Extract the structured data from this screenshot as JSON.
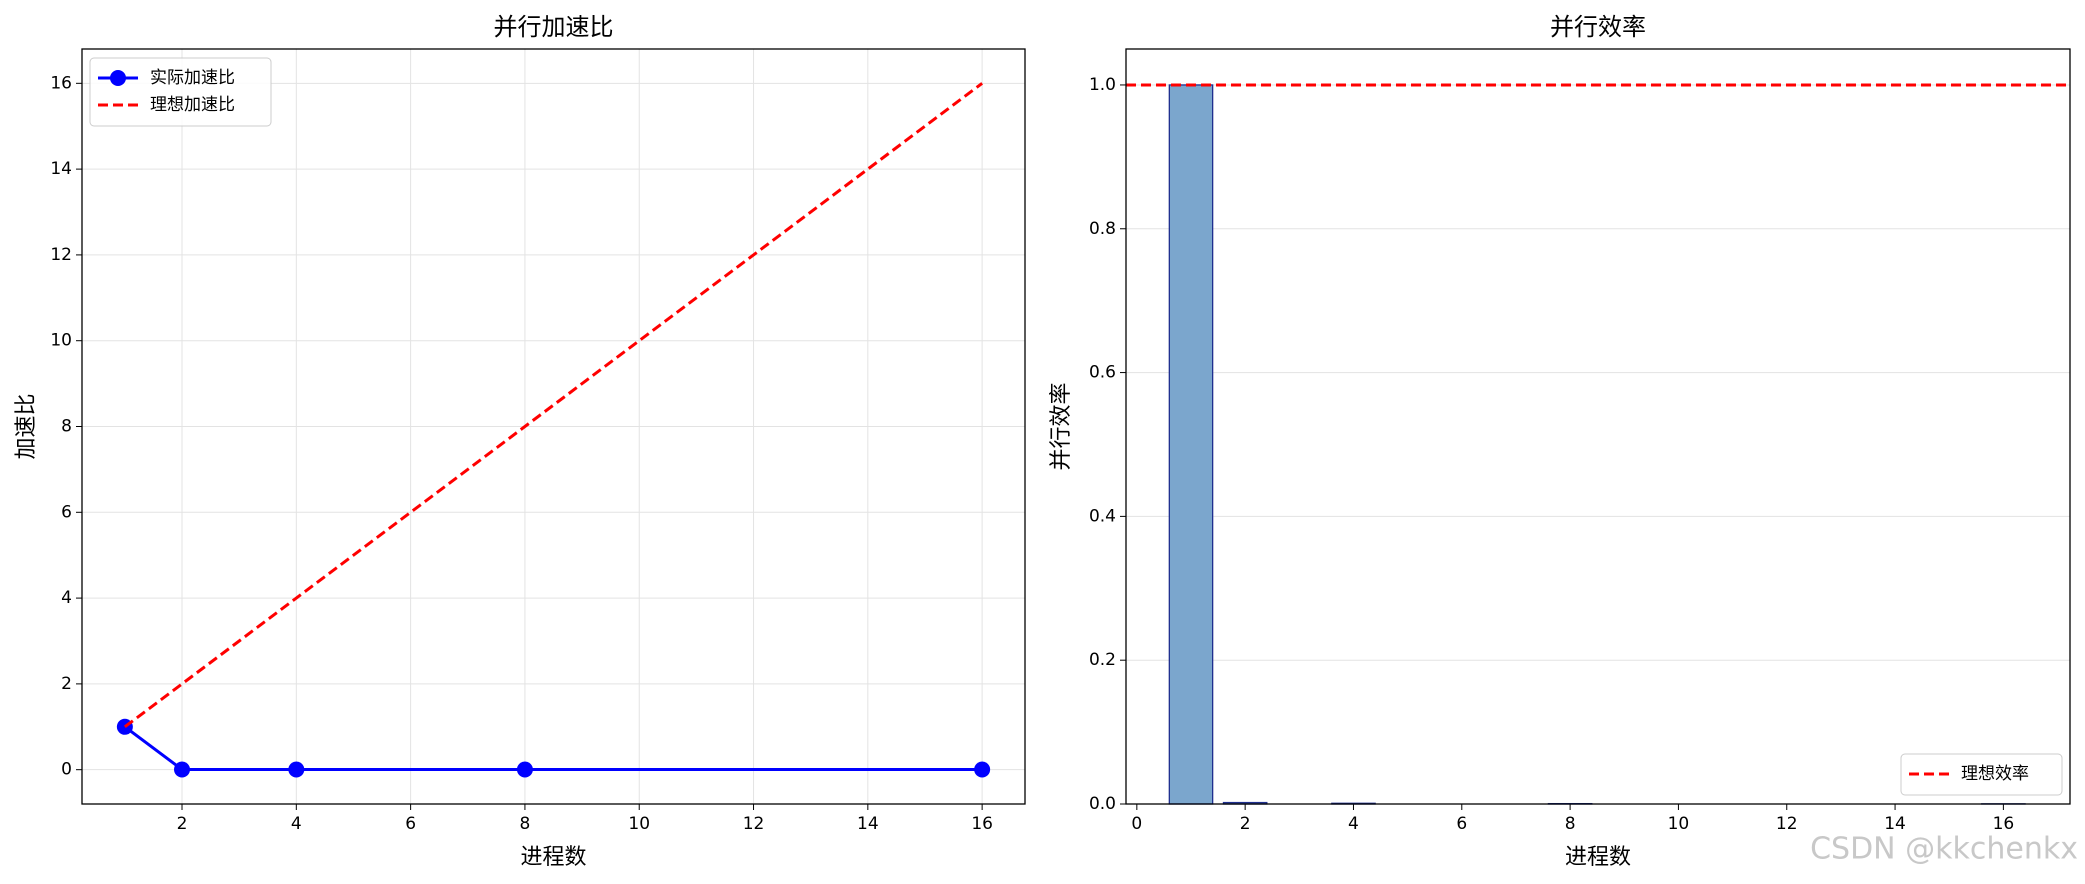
{
  "chart_data": [
    {
      "type": "line",
      "title": "并行加速比",
      "xlabel": "进程数",
      "ylabel": "加速比",
      "x": [
        1,
        2,
        4,
        8,
        16
      ],
      "series": [
        {
          "name": "实际加速比",
          "color": "#0000ff",
          "linestyle": "solid",
          "marker": "circle",
          "values": [
            1,
            0.004,
            0.004,
            0.004,
            0.004
          ]
        },
        {
          "name": "理想加速比",
          "color": "#ff0000",
          "linestyle": "dashed",
          "values": [
            1,
            2,
            4,
            8,
            16
          ]
        }
      ],
      "xlim": [
        0.25,
        16.75
      ],
      "ylim": [
        -0.8,
        16.8
      ],
      "xticks": [
        2,
        4,
        6,
        8,
        10,
        12,
        14,
        16
      ],
      "yticks": [
        0,
        2,
        4,
        6,
        8,
        10,
        12,
        14,
        16
      ],
      "grid": "both",
      "legend": "upper left"
    },
    {
      "type": "bar",
      "title": "并行效率",
      "xlabel": "进程数",
      "ylabel": "并行效率",
      "x": [
        1,
        2,
        4,
        8,
        16
      ],
      "values": [
        1,
        0.002,
        0.001,
        0.0005,
        0.00025
      ],
      "color": "#7ba6cd",
      "edgecolor": "#1f2f8f",
      "reference_line": {
        "name": "理想效率",
        "y": 1.0,
        "color": "#ff0000",
        "linestyle": "dashed"
      },
      "xlim": [
        -0.2,
        17.23
      ],
      "ylim": [
        0,
        1.05
      ],
      "xticks": [
        0,
        2,
        4,
        6,
        8,
        10,
        12,
        14,
        16
      ],
      "yticks": [
        {
          "value": 0,
          "label": "0.0"
        },
        {
          "value": 0.2,
          "label": "0.2"
        },
        {
          "value": 0.4,
          "label": "0.4"
        },
        {
          "value": 0.6,
          "label": "0.6"
        },
        {
          "value": 0.8,
          "label": "0.8"
        },
        {
          "value": 1,
          "label": "1.0"
        }
      ],
      "grid": "y",
      "legend": "lower right"
    }
  ],
  "watermark": "CSDN @kkchenkx"
}
